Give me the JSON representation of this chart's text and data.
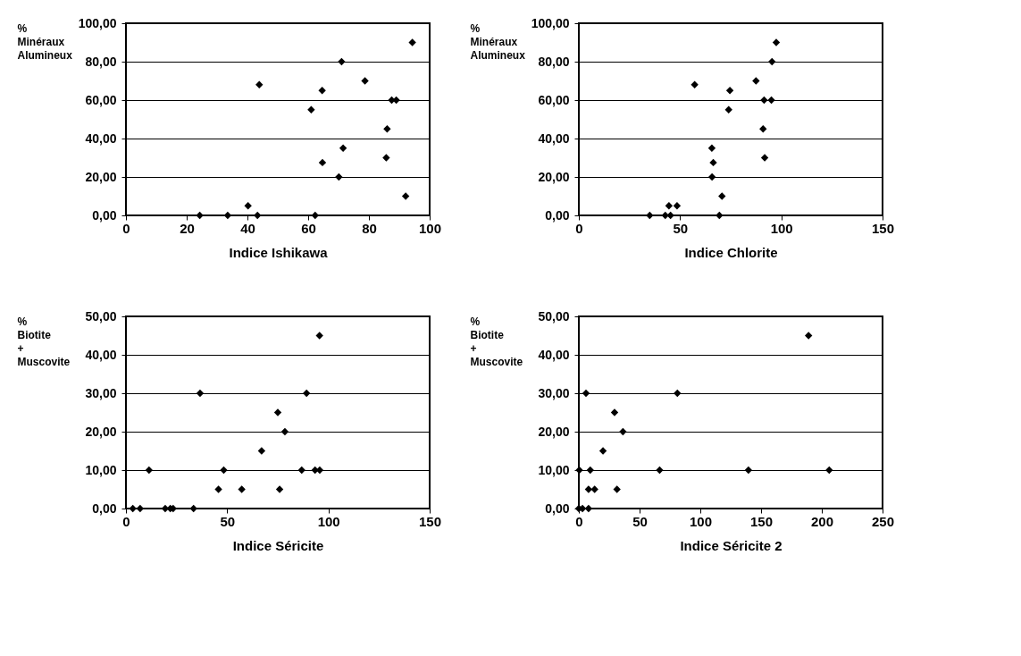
{
  "chart_data": [
    {
      "type": "scatter",
      "xlabel": "Indice Ishikawa",
      "ylabel": "% Minéraux Alumineux",
      "marker": "diamond",
      "grid": "y",
      "xlim": [
        0,
        100
      ],
      "xticks": [
        0,
        20,
        40,
        60,
        80,
        100
      ],
      "ylim": [
        0,
        100
      ],
      "yticks": [
        {
          "value": 0,
          "label": "0,00"
        },
        {
          "value": 20,
          "label": "20,00"
        },
        {
          "value": 40,
          "label": "40,00"
        },
        {
          "value": 60,
          "label": "60,00"
        },
        {
          "value": 80,
          "label": "80,00"
        },
        {
          "value": 100,
          "label": "100,00"
        }
      ],
      "series": [
        {
          "color": "#000000",
          "x": [
            24.3,
            33.5,
            40.2,
            43.3,
            43.9,
            61.0,
            62.3,
            64.6,
            64.7,
            70.1,
            71.0,
            71.5,
            78.7,
            85.7,
            86.0,
            87.5,
            89.0,
            92.1,
            94.3
          ],
          "values": [
            0,
            0,
            5,
            0,
            68,
            55,
            0,
            65,
            27.5,
            20,
            80,
            35,
            70,
            30,
            45,
            60,
            60,
            10,
            90
          ]
        }
      ]
    },
    {
      "type": "scatter",
      "xlabel": "Indice Chlorite",
      "ylabel": "% Minéraux Alumineux",
      "marker": "diamond",
      "grid": "y",
      "xlim": [
        0,
        150
      ],
      "xticks": [
        0,
        50,
        100,
        150
      ],
      "ylim": [
        0,
        100
      ],
      "yticks": [
        {
          "value": 0,
          "label": "0,00"
        },
        {
          "value": 20,
          "label": "20,00"
        },
        {
          "value": 40,
          "label": "40,00"
        },
        {
          "value": 60,
          "label": "60,00"
        },
        {
          "value": 80,
          "label": "80,00"
        },
        {
          "value": 100,
          "label": "100,00"
        }
      ],
      "series": [
        {
          "color": "#000000",
          "x": [
            35.0,
            42.7,
            44.5,
            45.3,
            48.5,
            57.2,
            65.7,
            66.4,
            65.8,
            69.4,
            70.7,
            74.0,
            74.6,
            87.5,
            91.0,
            91.8,
            91.5,
            95.1,
            95.4,
            97.5
          ],
          "values": [
            0,
            0,
            5,
            0,
            5,
            68,
            35,
            27.5,
            20,
            0,
            10,
            55,
            65,
            70,
            45,
            30,
            60,
            60,
            80,
            90
          ]
        }
      ]
    },
    {
      "type": "scatter",
      "xlabel": "Indice Séricite",
      "ylabel": "% Biotite + Muscovite",
      "marker": "diamond",
      "grid": "y",
      "xlim": [
        0,
        150
      ],
      "xticks": [
        0,
        50,
        100,
        150
      ],
      "ylim": [
        0,
        50
      ],
      "yticks": [
        {
          "value": 0,
          "label": "0,00"
        },
        {
          "value": 10,
          "label": "10,00"
        },
        {
          "value": 20,
          "label": "20,00"
        },
        {
          "value": 30,
          "label": "30,00"
        },
        {
          "value": 40,
          "label": "40,00"
        },
        {
          "value": 50,
          "label": "50,00"
        }
      ],
      "series": [
        {
          "color": "#000000",
          "x": [
            3.4,
            7.0,
            11.4,
            19.4,
            21.9,
            23.3,
            33.4,
            36.6,
            45.7,
            48.3,
            57.2,
            67.0,
            75.0,
            75.9,
            78.5,
            86.8,
            89.2,
            93.4,
            95.7,
            95.6
          ],
          "values": [
            0,
            0,
            10,
            0,
            0,
            0,
            0,
            30,
            5,
            10,
            5,
            15,
            25,
            5,
            20,
            10,
            30,
            10,
            10,
            45
          ]
        }
      ]
    },
    {
      "type": "scatter",
      "xlabel": "Indice Séricite 2",
      "ylabel": "% Biotite + Muscovite",
      "marker": "diamond",
      "grid": "y",
      "xlim": [
        0,
        250
      ],
      "xticks": [
        0,
        50,
        100,
        150,
        200,
        250
      ],
      "ylim": [
        0,
        50
      ],
      "yticks": [
        {
          "value": 0,
          "label": "0,00"
        },
        {
          "value": 10,
          "label": "10,00"
        },
        {
          "value": 20,
          "label": "20,00"
        },
        {
          "value": 30,
          "label": "30,00"
        },
        {
          "value": 40,
          "label": "40,00"
        },
        {
          "value": 50,
          "label": "50,00"
        }
      ],
      "series": [
        {
          "color": "#000000",
          "x": [
            0,
            3,
            8,
            0.4,
            5.9,
            8.0,
            9.4,
            13.0,
            19.9,
            29.4,
            31.4,
            36.3,
            66.5,
            81.1,
            139.6,
            189.1,
            206.1
          ],
          "values": [
            0,
            0,
            0,
            10,
            30,
            5,
            10,
            5,
            15,
            25,
            5,
            20,
            10,
            30,
            10,
            45,
            10
          ]
        }
      ]
    }
  ]
}
